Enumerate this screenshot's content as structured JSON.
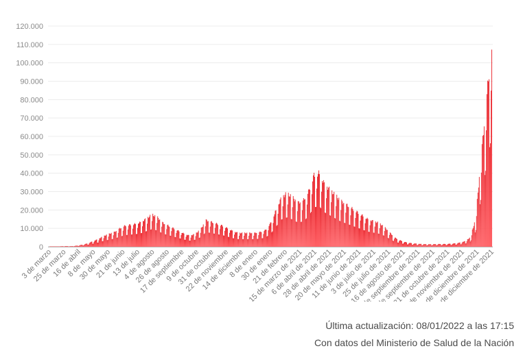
{
  "chart_data": {
    "type": "bar",
    "title": "",
    "xlabel": "",
    "ylabel": "",
    "ylim": [
      0,
      120000
    ],
    "y_ticks": [
      "0",
      "10.000",
      "20.000",
      "30.000",
      "40.000",
      "50.000",
      "60.000",
      "70.000",
      "80.000",
      "90.000",
      "100.000",
      "110.000",
      "120.000"
    ],
    "y_tick_values": [
      0,
      10000,
      20000,
      30000,
      40000,
      50000,
      60000,
      70000,
      80000,
      90000,
      100000,
      110000,
      120000
    ],
    "x_tick_labels": [
      "3 de marzo",
      "25 de marzo",
      "16 de abril",
      "8 de mayo",
      "30 de mayo",
      "21 de junio",
      "13 de julio",
      "4 de agosto",
      "26 de agosto",
      "17 de septiembre",
      "9 de octubre",
      "31 de octubre",
      "22 de noviembre",
      "14 de diciembre",
      "8 de enero",
      "30 de enero",
      "21 de febrero",
      "15 de marzo de 2021",
      "6 de abril de 2021",
      "28 de abril de 2021",
      "20 de mayo de 2021",
      "11 de junio de 2021",
      "3 de julio de 2021",
      "25 de julio de 2021",
      "16 de agosto de 2021",
      "7 de septiembre de 2021",
      "29 de septiembre de 2021",
      "21 de octubre de 2021",
      "12 de noviembre de 2021",
      "4 de diciembre de 2021",
      "26 de diciembre de 2021"
    ],
    "grid": true,
    "bar_color": "#e8242b",
    "series": [
      {
        "values": [
          10,
          80,
          250,
          350,
          300,
          600,
          1100,
          1800,
          3000,
          4200,
          5800,
          7000,
          8000,
          10000,
          11500,
          12000,
          12500,
          13500,
          15500,
          17500,
          16000,
          13000,
          11500,
          10000,
          8500,
          7000,
          6000,
          7000,
          9500,
          14500,
          13500,
          12500,
          11500,
          10000,
          8500,
          7500,
          7500,
          7500,
          7500,
          8000,
          9000,
          13000,
          20000,
          27000,
          29000,
          27000,
          24000,
          25000,
          30000,
          39000,
          40000,
          34000,
          31000,
          28000,
          25000,
          23000,
          21000,
          19000,
          17000,
          15000,
          14000,
          13000,
          11000,
          8000,
          5000,
          3500,
          2500,
          2000,
          1700,
          1500,
          1400,
          1400,
          1500,
          1500,
          1600,
          1800,
          2200,
          3000,
          5000,
          15000,
          48000,
          80000,
          110000
        ]
      }
    ]
  },
  "footer": {
    "updated": "Última actualización: 08/01/2022 a las 17:15",
    "source": "Con datos del Ministerio de Salud de la Nación"
  }
}
